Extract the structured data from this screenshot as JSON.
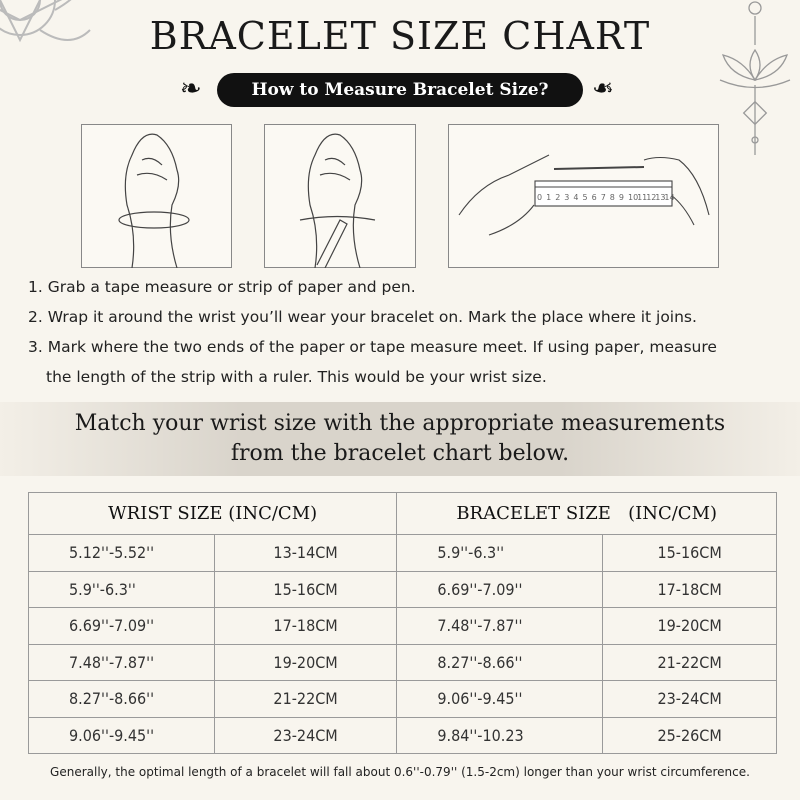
{
  "title": "BRACELET SIZE CHART",
  "subtitle": "How to Measure Bracelet Size?",
  "ruler_numbers": [
    "0",
    "1",
    "2",
    "3",
    "4",
    "5",
    "6",
    "7",
    "8",
    "9",
    "10",
    "11",
    "12",
    "13",
    "14"
  ],
  "steps": [
    "1. Grab a tape measure or strip of paper and pen.",
    "2. Wrap it around the wrist you’ll wear your bracelet on. Mark the place where it joins.",
    "3. Mark where the two ends of the paper or tape measure meet. If using paper, measure",
    "the length of the strip with a ruler. This would be your wrist size."
  ],
  "band": {
    "line1": "Match your wrist size with the appropriate measurements",
    "line2": "from the bracelet chart below."
  },
  "table": {
    "headers": [
      "WRIST SIZE (INC/CM)",
      "BRACELET SIZE   (INC/CM)"
    ],
    "rows": [
      [
        "5.12''-5.52''",
        "13-14CM",
        "5.9''-6.3''",
        "15-16CM"
      ],
      [
        "5.9''-6.3''",
        "15-16CM",
        "6.69''-7.09''",
        "17-18CM"
      ],
      [
        "6.69''-7.09''",
        "17-18CM",
        "7.48''-7.87''",
        "19-20CM"
      ],
      [
        "7.48''-7.87''",
        "19-20CM",
        "8.27''-8.66''",
        "21-22CM"
      ],
      [
        "8.27''-8.66''",
        "21-22CM",
        "9.06''-9.45''",
        "23-24CM"
      ],
      [
        "9.06''-9.45''",
        "23-24CM",
        "9.84''-10.23",
        "25-26CM"
      ]
    ]
  },
  "footnote": "Generally, the optimal length of a bracelet will fall about 0.6''-0.79'' (1.5-2cm) longer than your wrist circumference."
}
